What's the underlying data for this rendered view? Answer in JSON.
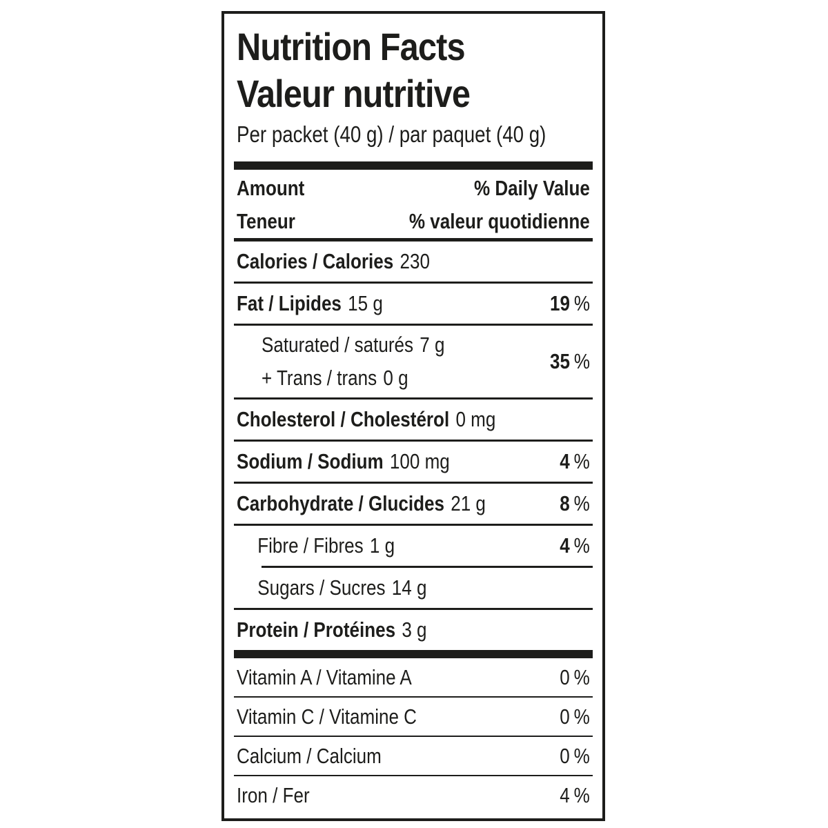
{
  "colors": {
    "ink": "#1d1d1b",
    "background": "#ffffff"
  },
  "label": {
    "title_en": "Nutrition Facts",
    "title_fr": "Valeur nutritive",
    "serving": "Per packet (40 g) / par paquet (40 g)",
    "percent_sign": "%",
    "header": {
      "amount_en": "Amount",
      "amount_fr": "Teneur",
      "dv_en": "% Daily Value",
      "dv_fr": "% valeur quotidienne"
    },
    "rows": [
      {
        "name": "Calories / Calories",
        "amount": "230",
        "dv": ""
      },
      {
        "name": "Fat / Lipides",
        "amount": "15 g",
        "dv": "19"
      },
      {
        "name": "Saturated / saturés",
        "amount": "7 g",
        "name2": "+ Trans / trans",
        "amount2": "0 g",
        "dv": "35"
      },
      {
        "name": "Cholesterol / Cholestérol",
        "amount": "0 mg",
        "dv": ""
      },
      {
        "name": "Sodium / Sodium",
        "amount": "100 mg",
        "dv": "4"
      },
      {
        "name": "Carbohydrate / Glucides",
        "amount": "21 g",
        "dv": "8"
      },
      {
        "name": "Fibre / Fibres",
        "amount": "1 g",
        "dv": "4"
      },
      {
        "name": "Sugars / Sucres",
        "amount": "14 g",
        "dv": ""
      },
      {
        "name": "Protein / Protéines",
        "amount": "3 g",
        "dv": ""
      }
    ],
    "micros": [
      {
        "name": "Vitamin A / Vitamine A",
        "dv": "0"
      },
      {
        "name": "Vitamin C / Vitamine C",
        "dv": "0"
      },
      {
        "name": "Calcium / Calcium",
        "dv": "0"
      },
      {
        "name": "Iron / Fer",
        "dv": "4"
      }
    ]
  }
}
